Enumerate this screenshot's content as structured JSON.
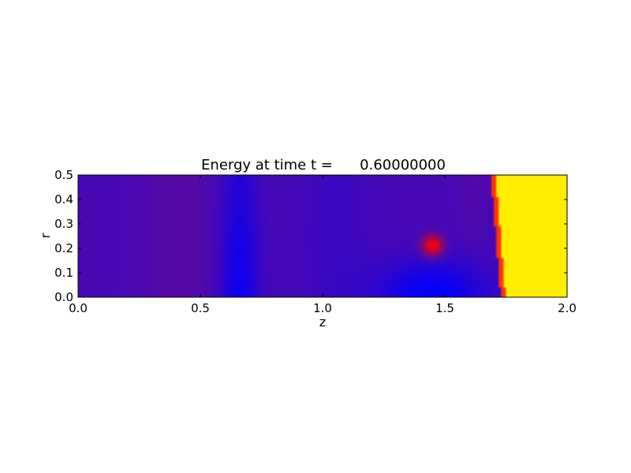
{
  "chart_data": {
    "type": "heatmap",
    "title": "Energy at time t =      0.60000000",
    "xlabel": "z",
    "ylabel": "r",
    "xlim": [
      0.0,
      2.0
    ],
    "ylim": [
      0.0,
      0.5
    ],
    "x_ticks": [
      {
        "value": 0.0,
        "label": "0.0"
      },
      {
        "value": 0.5,
        "label": "0.5"
      },
      {
        "value": 1.0,
        "label": "1.0"
      },
      {
        "value": 1.5,
        "label": "1.5"
      },
      {
        "value": 2.0,
        "label": "2.0"
      }
    ],
    "y_ticks": [
      {
        "value": 0.0,
        "label": "0.0"
      },
      {
        "value": 0.1,
        "label": "0.1"
      },
      {
        "value": 0.2,
        "label": "0.2"
      },
      {
        "value": 0.3,
        "label": "0.3"
      },
      {
        "value": 0.4,
        "label": "0.4"
      },
      {
        "value": 0.5,
        "label": "0.5"
      }
    ],
    "grid": false,
    "colormap": [
      "#0000ff",
      "#5a0aa0",
      "#ff0000",
      "#ffee00"
    ],
    "features": [
      {
        "name": "hot-blob",
        "z": 1.45,
        "r": 0.21,
        "level": "high (red)"
      },
      {
        "name": "shock-front",
        "z_at_r0": 1.74,
        "z_at_r05": 1.7,
        "level": "max (yellow) for z beyond front"
      },
      {
        "name": "low-energy-pocket",
        "z_range": [
          1.2,
          1.7
        ],
        "r_range": [
          0.0,
          0.18
        ],
        "level": "low (blue)"
      },
      {
        "name": "low-energy-band",
        "z_range": [
          0.6,
          0.75
        ],
        "level": "low (blue)"
      }
    ]
  }
}
